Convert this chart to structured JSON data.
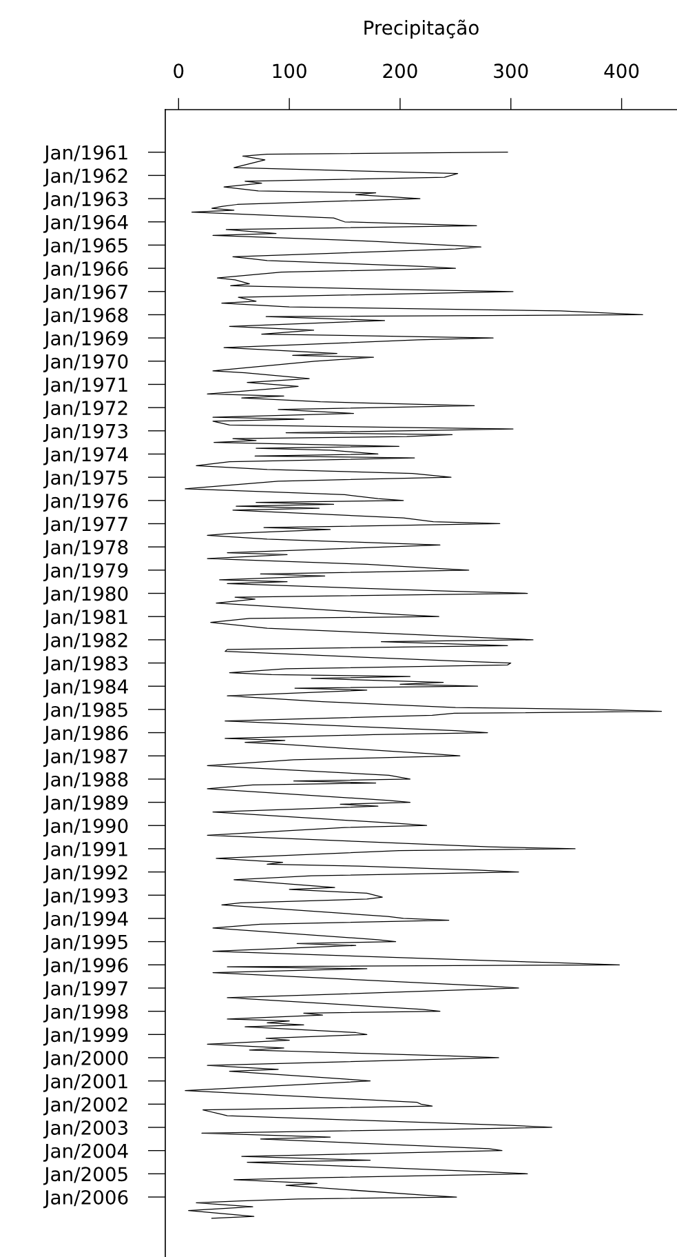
{
  "chart_data": {
    "type": "line",
    "orientation": "horizontal",
    "xlabel": "Precipitação",
    "color": "#000000",
    "line_style": "solid",
    "x": [
      "1961-01",
      "1961-02",
      "1961-03",
      "1961-05",
      "1961-09",
      "1961-10",
      "1961-12",
      "1962-02",
      "1962-04",
      "1962-05",
      "1962-07",
      "1962-09",
      "1962-10",
      "1962-11",
      "1962-12",
      "1963-01",
      "1963-04",
      "1963-05",
      "1963-06",
      "1963-07",
      "1963-08",
      "1963-11",
      "1964-01",
      "1964-03",
      "1964-05",
      "1964-07",
      "1964-08",
      "1964-11",
      "1965-02",
      "1965-03",
      "1965-07",
      "1965-08",
      "1965-09",
      "1965-12",
      "1966-01",
      "1966-03",
      "1966-06",
      "1966-07",
      "1966-09",
      "1966-10",
      "1966-12",
      "1967-01",
      "1967-04",
      "1967-06",
      "1967-07",
      "1967-09",
      "1967-11",
      "1968-01",
      "1968-02",
      "1968-04",
      "1968-07",
      "1968-09",
      "1968-11",
      "1969-01",
      "1969-02",
      "1969-06",
      "1969-09",
      "1969-10",
      "1969-11",
      "1970-01",
      "1970-03",
      "1970-06",
      "1970-07",
      "1970-10",
      "1970-12",
      "1971-02",
      "1971-03",
      "1971-06",
      "1971-07",
      "1971-08",
      "1971-10",
      "1971-12",
      "1972-02",
      "1972-04",
      "1972-06",
      "1972-07",
      "1972-08",
      "1972-10",
      "1972-12",
      "1973-02",
      "1973-03",
      "1973-04",
      "1973-05",
      "1973-06",
      "1973-07",
      "1973-09",
      "1973-10",
      "1973-11",
      "1974-01",
      "1974-02",
      "1974-03",
      "1974-05",
      "1974-07",
      "1974-09",
      "1974-11",
      "1975-01",
      "1975-03",
      "1975-07",
      "1975-10",
      "1975-12",
      "1976-01",
      "1976-02",
      "1976-03",
      "1976-04",
      "1976-05",
      "1976-06",
      "1976-10",
      "1976-12",
      "1977-01",
      "1977-03",
      "1977-04",
      "1977-06",
      "1977-07",
      "1977-09",
      "1977-12",
      "1978-04",
      "1978-05",
      "1978-07",
      "1978-10",
      "1978-12",
      "1979-01",
      "1979-03",
      "1979-04",
      "1979-06",
      "1979-07",
      "1979-08",
      "1979-12",
      "1980-01",
      "1980-03",
      "1980-04",
      "1980-06",
      "1980-12",
      "1981-01",
      "1981-02",
      "1981-04",
      "1981-07",
      "1981-10",
      "1981-12",
      "1982-01",
      "1982-02",
      "1982-04",
      "1982-06",
      "1982-07",
      "1982-12",
      "1983-01",
      "1983-02",
      "1983-04",
      "1983-06",
      "1983-07",
      "1983-08",
      "1983-09",
      "1983-11",
      "1983-12",
      "1984-01",
      "1984-02",
      "1984-03",
      "1984-06",
      "1984-09",
      "1984-12",
      "1985-01",
      "1985-02",
      "1985-03",
      "1985-04",
      "1985-06",
      "1985-07",
      "1985-12",
      "1986-01",
      "1986-02",
      "1986-04",
      "1986-05",
      "1986-06",
      "1986-07",
      "1986-12",
      "1987-01",
      "1987-02",
      "1987-03",
      "1987-06",
      "1987-11",
      "1988-01",
      "1988-02",
      "1988-03",
      "1988-04",
      "1988-06",
      "1988-12",
      "1989-01",
      "1989-02",
      "1989-03",
      "1989-06",
      "1989-12",
      "1990-01",
      "1990-02",
      "1990-06",
      "1990-12",
      "1991-01",
      "1991-02",
      "1991-06",
      "1991-08",
      "1991-09",
      "1991-10",
      "1991-12",
      "1992-01",
      "1992-03",
      "1992-05",
      "1992-09",
      "1992-10",
      "1992-12",
      "1993-02",
      "1993-03",
      "1993-05",
      "1993-06",
      "1993-12",
      "1994-01",
      "1994-02",
      "1994-04",
      "1994-06",
      "1994-12",
      "1995-01",
      "1995-02",
      "1995-03",
      "1995-06",
      "1995-12",
      "1996-01",
      "1996-02",
      "1996-03",
      "1996-05",
      "1996-12",
      "1997-01",
      "1997-06",
      "1997-12",
      "1998-01",
      "1998-02",
      "1998-03",
      "1998-05",
      "1998-06",
      "1998-07",
      "1998-08",
      "1998-09",
      "1998-12",
      "1999-01",
      "1999-03",
      "1999-04",
      "1999-06",
      "1999-08",
      "1999-09",
      "1999-12",
      "2000-01",
      "2000-05",
      "2000-07",
      "2000-08",
      "2000-12",
      "2001-01",
      "2001-06",
      "2001-12",
      "2002-01",
      "2002-02",
      "2002-04",
      "2002-06",
      "2002-07",
      "2002-12",
      "2003-01",
      "2003-02",
      "2003-04",
      "2003-06",
      "2003-07",
      "2003-12",
      "2004-01",
      "2004-04",
      "2004-06",
      "2004-07",
      "2004-12",
      "2005-01",
      "2005-03",
      "2005-04",
      "2005-06",
      "2005-07",
      "2005-12",
      "2006-01",
      "2006-02",
      "2006-03",
      "2006-04",
      "2006-06",
      "2006-08",
      "2006-11",
      "2006-12"
    ],
    "values": [
      297,
      80,
      58,
      78,
      50,
      115,
      252,
      240,
      60,
      75,
      41,
      72,
      178,
      160,
      191,
      218,
      53,
      39,
      30,
      50,
      12,
      140,
      150,
      269,
      43,
      88,
      31,
      174,
      273,
      250,
      49,
      65,
      80,
      220,
      250,
      93,
      35,
      51,
      64,
      47,
      200,
      302,
      54,
      70,
      39,
      100,
      345,
      419,
      79,
      186,
      46,
      122,
      75,
      284,
      216,
      41,
      143,
      103,
      176,
      123,
      87,
      31,
      60,
      118,
      62,
      108,
      90,
      26,
      95,
      57,
      128,
      267,
      90,
      158,
      31,
      113,
      31,
      46,
      302,
      97,
      247,
      206,
      49,
      70,
      32,
      199,
      70,
      137,
      180,
      69,
      213,
      46,
      16,
      80,
      211,
      246,
      90,
      6,
      150,
      180,
      203,
      70,
      140,
      52,
      127,
      49,
      203,
      230,
      290,
      77,
      137,
      47,
      26,
      80,
      236,
      44,
      98,
      26,
      170,
      230,
      262,
      74,
      132,
      37,
      98,
      44,
      250,
      315,
      51,
      69,
      34,
      200,
      235,
      64,
      29,
      80,
      200,
      280,
      320,
      183,
      297,
      44,
      42,
      250,
      300,
      297,
      97,
      46,
      84,
      209,
      120,
      239,
      200,
      270,
      105,
      170,
      44,
      130,
      250,
      376,
      436,
      249,
      229,
      103,
      42,
      250,
      279,
      176,
      42,
      96,
      60,
      94,
      230,
      254,
      178,
      104,
      26,
      190,
      209,
      104,
      178,
      67,
      26,
      190,
      209,
      146,
      180,
      31,
      200,
      224,
      150,
      26,
      280,
      358,
      199,
      34,
      94,
      80,
      163,
      270,
      307,
      120,
      50,
      141,
      100,
      170,
      184,
      170,
      56,
      39,
      189,
      203,
      244,
      74,
      31,
      180,
      196,
      107,
      160,
      31,
      344,
      398,
      44,
      170,
      31,
      280,
      307,
      44,
      220,
      236,
      113,
      130,
      44,
      100,
      80,
      113,
      60,
      160,
      170,
      79,
      100,
      26,
      95,
      64,
      240,
      289,
      26,
      90,
      46,
      150,
      173,
      6,
      215,
      219,
      229,
      22,
      37,
      44,
      300,
      337,
      239,
      21,
      137,
      74,
      280,
      292,
      57,
      173,
      62,
      280,
      315,
      130,
      50,
      125,
      97,
      220,
      251,
      108,
      57,
      16,
      67,
      9,
      68,
      30
    ],
    "xlim": [
      -12,
      450
    ],
    "xticks": [
      0,
      100,
      200,
      300,
      400
    ],
    "ylim": [
      "2008-08",
      "1959-03"
    ],
    "yticks": [
      {
        "value": "1961-01",
        "label": "Jan/1961"
      },
      {
        "value": "1962-01",
        "label": "Jan/1962"
      },
      {
        "value": "1963-01",
        "label": "Jan/1963"
      },
      {
        "value": "1964-01",
        "label": "Jan/1964"
      },
      {
        "value": "1965-01",
        "label": "Jan/1965"
      },
      {
        "value": "1966-01",
        "label": "Jan/1966"
      },
      {
        "value": "1967-01",
        "label": "Jan/1967"
      },
      {
        "value": "1968-01",
        "label": "Jan/1968"
      },
      {
        "value": "1969-01",
        "label": "Jan/1969"
      },
      {
        "value": "1970-01",
        "label": "Jan/1970"
      },
      {
        "value": "1971-01",
        "label": "Jan/1971"
      },
      {
        "value": "1972-01",
        "label": "Jan/1972"
      },
      {
        "value": "1973-01",
        "label": "Jan/1973"
      },
      {
        "value": "1974-01",
        "label": "Jan/1974"
      },
      {
        "value": "1975-01",
        "label": "Jan/1975"
      },
      {
        "value": "1976-01",
        "label": "Jan/1976"
      },
      {
        "value": "1977-01",
        "label": "Jan/1977"
      },
      {
        "value": "1978-01",
        "label": "Jan/1978"
      },
      {
        "value": "1979-01",
        "label": "Jan/1979"
      },
      {
        "value": "1980-01",
        "label": "Jan/1980"
      },
      {
        "value": "1981-01",
        "label": "Jan/1981"
      },
      {
        "value": "1982-01",
        "label": "Jan/1982"
      },
      {
        "value": "1983-01",
        "label": "Jan/1983"
      },
      {
        "value": "1984-01",
        "label": "Jan/1984"
      },
      {
        "value": "1985-01",
        "label": "Jan/1985"
      },
      {
        "value": "1986-01",
        "label": "Jan/1986"
      },
      {
        "value": "1987-01",
        "label": "Jan/1987"
      },
      {
        "value": "1988-01",
        "label": "Jan/1988"
      },
      {
        "value": "1989-01",
        "label": "Jan/1989"
      },
      {
        "value": "1990-01",
        "label": "Jan/1990"
      },
      {
        "value": "1991-01",
        "label": "Jan/1991"
      },
      {
        "value": "1992-01",
        "label": "Jan/1992"
      },
      {
        "value": "1993-01",
        "label": "Jan/1993"
      },
      {
        "value": "1994-01",
        "label": "Jan/1994"
      },
      {
        "value": "1995-01",
        "label": "Jan/1995"
      },
      {
        "value": "1996-01",
        "label": "Jan/1996"
      },
      {
        "value": "1997-01",
        "label": "Jan/1997"
      },
      {
        "value": "1998-01",
        "label": "Jan/1998"
      },
      {
        "value": "1999-01",
        "label": "Jan/1999"
      },
      {
        "value": "2000-01",
        "label": "Jan/2000"
      },
      {
        "value": "2001-01",
        "label": "Jan/2001"
      },
      {
        "value": "2002-01",
        "label": "Jan/2002"
      },
      {
        "value": "2003-01",
        "label": "Jan/2003"
      },
      {
        "value": "2004-01",
        "label": "Jan/2004"
      },
      {
        "value": "2005-01",
        "label": "Jan/2005"
      },
      {
        "value": "2006-01",
        "label": "Jan/2006"
      }
    ]
  }
}
